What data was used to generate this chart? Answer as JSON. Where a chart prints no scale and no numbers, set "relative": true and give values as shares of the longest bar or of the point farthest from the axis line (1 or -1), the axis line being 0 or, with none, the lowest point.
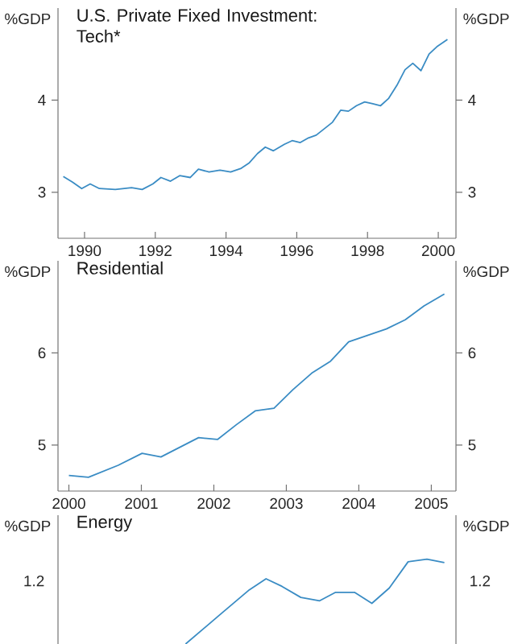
{
  "chart_data": [
    {
      "type": "line",
      "title": "U.S. Private Fixed Investment: Tech*",
      "ylabel": "%GDP",
      "y2label": "%GDP",
      "color": "#3a8cc4",
      "x": [
        1989.4,
        1989.66,
        1989.92,
        1990.16,
        1990.42,
        1990.87,
        1991.33,
        1991.63,
        1991.93,
        1992.16,
        1992.43,
        1992.69,
        1992.99,
        1993.22,
        1993.52,
        1993.83,
        1994.13,
        1994.43,
        1994.66,
        1994.89,
        1995.11,
        1995.34,
        1995.65,
        1995.87,
        1996.1,
        1996.33,
        1996.55,
        1996.78,
        1997.01,
        1997.24,
        1997.46,
        1997.69,
        1997.92,
        1998.15,
        1998.37,
        1998.6,
        1998.83,
        1999.06,
        1999.28,
        1999.51,
        1999.74,
        1999.96,
        2000.26
      ],
      "values": [
        3.17,
        3.11,
        3.04,
        3.09,
        3.04,
        3.03,
        3.05,
        3.03,
        3.09,
        3.16,
        3.12,
        3.18,
        3.16,
        3.25,
        3.22,
        3.24,
        3.22,
        3.26,
        3.32,
        3.42,
        3.49,
        3.45,
        3.52,
        3.56,
        3.54,
        3.59,
        3.62,
        3.69,
        3.76,
        3.89,
        3.88,
        3.94,
        3.98,
        3.96,
        3.94,
        4.02,
        4.16,
        4.33,
        4.4,
        4.32,
        4.5,
        4.58,
        4.66
      ],
      "xlim": [
        1989.25,
        2000.5
      ],
      "xticks": [
        1990,
        1992,
        1994,
        1996,
        1998,
        2000
      ],
      "ylim": [
        2.5,
        5
      ],
      "yticks": [
        3,
        4
      ],
      "y2lim": [
        2.5,
        5
      ],
      "y2ticks": [
        3,
        4
      ]
    },
    {
      "type": "line",
      "title": "Residential",
      "ylabel": "%GDP",
      "y2label": "%GDP",
      "color": "#3a8cc4",
      "x": [
        2000.0,
        2000.27,
        2000.68,
        2001.01,
        2001.27,
        2001.79,
        2002.05,
        2002.31,
        2002.57,
        2002.83,
        2003.09,
        2003.35,
        2003.61,
        2003.86,
        2004.12,
        2004.38,
        2004.64,
        2004.9,
        2005.18
      ],
      "values": [
        4.67,
        4.65,
        4.78,
        4.91,
        4.87,
        5.08,
        5.06,
        5.22,
        5.37,
        5.4,
        5.6,
        5.78,
        5.91,
        6.12,
        6.19,
        6.26,
        6.36,
        6.51,
        6.64
      ],
      "xlim": [
        1999.85,
        2005.34
      ],
      "xticks": [
        2000,
        2001,
        2002,
        2003,
        2004,
        2005
      ],
      "ylim": [
        4.5,
        7
      ],
      "yticks": [
        5,
        6
      ],
      "y2lim": [
        4.5,
        7
      ],
      "y2ticks": [
        5,
        6
      ]
    },
    {
      "type": "line",
      "title": "Energy",
      "ylabel": "%GDP",
      "y2label": "%GDP",
      "color": "#3a8cc4",
      "tick_labels": false,
      "relative": true,
      "annotations": [
        "1.2",
        "1.2"
      ],
      "x": [
        2001.61,
        2002.09,
        2002.49,
        2002.72,
        2002.94,
        2003.2,
        2003.46,
        2003.68,
        2003.94,
        2004.18,
        2004.42,
        2004.68,
        2004.94,
        2005.18
      ],
      "values": [
        0,
        0.35,
        0.64,
        0.77,
        0.68,
        0.55,
        0.51,
        0.61,
        0.61,
        0.48,
        0.66,
        0.97,
        1,
        0.96
      ],
      "xlim": [
        1999.85,
        2005.34
      ]
    }
  ]
}
